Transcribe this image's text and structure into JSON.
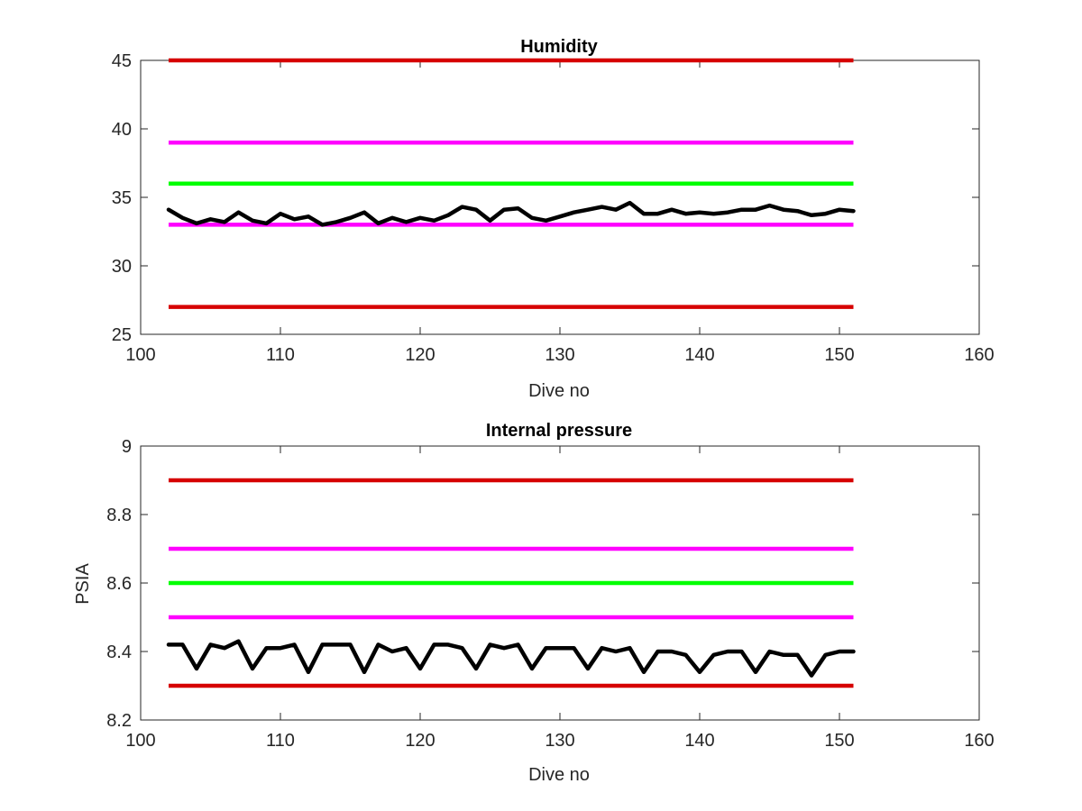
{
  "chart_data": [
    {
      "type": "line",
      "title": "Humidity",
      "xlabel": "Dive no",
      "ylabel": "",
      "xlim": [
        100,
        160
      ],
      "ylim": [
        25,
        45
      ],
      "xticks": [
        100,
        110,
        120,
        130,
        140,
        150,
        160
      ],
      "yticks": [
        25,
        30,
        35,
        40,
        45
      ],
      "grid": false,
      "thresholds": [
        {
          "y": 45,
          "color": "#d60000"
        },
        {
          "y": 39,
          "color": "#ff00ff"
        },
        {
          "y": 36,
          "color": "#00ff00"
        },
        {
          "y": 33,
          "color": "#ff00ff"
        },
        {
          "y": 27,
          "color": "#d60000"
        }
      ],
      "series": [
        {
          "color": "#000000",
          "x": [
            102,
            103,
            104,
            105,
            106,
            107,
            108,
            109,
            110,
            111,
            112,
            113,
            114,
            115,
            116,
            117,
            118,
            119,
            120,
            121,
            122,
            123,
            124,
            125,
            126,
            127,
            128,
            129,
            130,
            131,
            132,
            133,
            134,
            135,
            136,
            137,
            138,
            139,
            140,
            141,
            142,
            143,
            144,
            145,
            146,
            147,
            148,
            149,
            150,
            151
          ],
          "y": [
            34.1,
            33.5,
            33.1,
            33.4,
            33.2,
            33.9,
            33.3,
            33.1,
            33.8,
            33.4,
            33.6,
            33.0,
            33.2,
            33.5,
            33.9,
            33.1,
            33.5,
            33.2,
            33.5,
            33.3,
            33.7,
            34.3,
            34.1,
            33.3,
            34.1,
            34.2,
            33.5,
            33.3,
            33.6,
            33.9,
            34.1,
            34.3,
            34.1,
            34.6,
            33.8,
            33.8,
            34.1,
            33.8,
            33.9,
            33.8,
            33.9,
            34.1,
            34.1,
            34.4,
            34.1,
            34.0,
            33.7,
            33.8,
            34.1,
            34.0
          ]
        }
      ]
    },
    {
      "type": "line",
      "title": "Internal pressure",
      "xlabel": "Dive no",
      "ylabel": "PSIA",
      "xlim": [
        100,
        160
      ],
      "ylim": [
        8.2,
        9.0
      ],
      "xticks": [
        100,
        110,
        120,
        130,
        140,
        150,
        160
      ],
      "yticks": [
        8.2,
        8.4,
        8.6,
        8.8,
        9.0
      ],
      "ytick_labels": [
        "8.2",
        "8.4",
        "8.6",
        "8.8",
        "9"
      ],
      "grid": false,
      "thresholds": [
        {
          "y": 8.9,
          "color": "#d60000"
        },
        {
          "y": 8.7,
          "color": "#ff00ff"
        },
        {
          "y": 8.6,
          "color": "#00ff00"
        },
        {
          "y": 8.5,
          "color": "#ff00ff"
        },
        {
          "y": 8.3,
          "color": "#d60000"
        }
      ],
      "series": [
        {
          "color": "#000000",
          "x": [
            102,
            103,
            104,
            105,
            106,
            107,
            108,
            109,
            110,
            111,
            112,
            113,
            114,
            115,
            116,
            117,
            118,
            119,
            120,
            121,
            122,
            123,
            124,
            125,
            126,
            127,
            128,
            129,
            130,
            131,
            132,
            133,
            134,
            135,
            136,
            137,
            138,
            139,
            140,
            141,
            142,
            143,
            144,
            145,
            146,
            147,
            148,
            149,
            150,
            151
          ],
          "y": [
            8.42,
            8.42,
            8.35,
            8.42,
            8.41,
            8.43,
            8.35,
            8.41,
            8.41,
            8.42,
            8.34,
            8.42,
            8.42,
            8.42,
            8.34,
            8.42,
            8.4,
            8.41,
            8.35,
            8.42,
            8.42,
            8.41,
            8.35,
            8.42,
            8.41,
            8.42,
            8.35,
            8.41,
            8.41,
            8.41,
            8.35,
            8.41,
            8.4,
            8.41,
            8.34,
            8.4,
            8.4,
            8.39,
            8.34,
            8.39,
            8.4,
            8.4,
            8.34,
            8.4,
            8.39,
            8.39,
            8.33,
            8.39,
            8.4,
            8.4
          ]
        }
      ]
    }
  ]
}
